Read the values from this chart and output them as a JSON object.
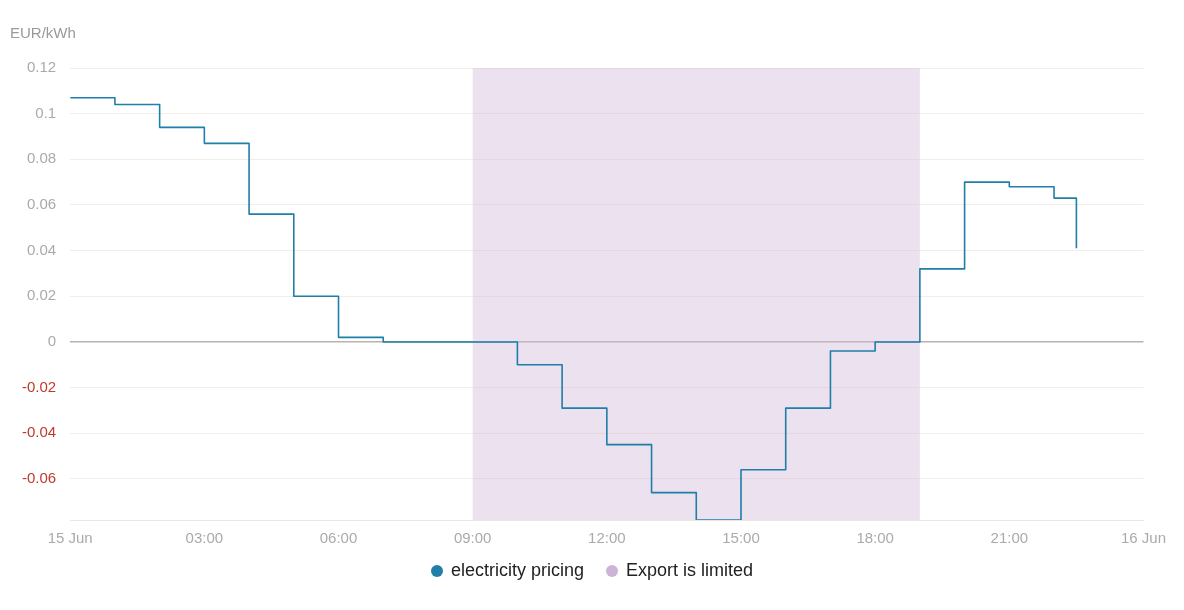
{
  "chart_data": {
    "type": "step",
    "ylabel": "EUR/kWh",
    "x": [
      0,
      1,
      2,
      3,
      4,
      5,
      6,
      7,
      8,
      9,
      10,
      11,
      12,
      13,
      14,
      15,
      16,
      17,
      18,
      19,
      20,
      21,
      22,
      22.5
    ],
    "series": [
      {
        "name": "electricity pricing",
        "color": "#1f7fa8",
        "values": [
          0.107,
          0.104,
          0.094,
          0.087,
          0.056,
          0.02,
          0.002,
          0.0,
          0.0,
          0.0,
          -0.01,
          -0.029,
          -0.045,
          -0.066,
          -0.078,
          -0.056,
          -0.029,
          -0.004,
          0.0,
          0.032,
          0.07,
          0.068,
          0.063,
          0.041
        ]
      }
    ],
    "xlim": [
      0,
      24
    ],
    "xticks": [
      {
        "value": 0,
        "label": "15 Jun"
      },
      {
        "value": 3,
        "label": "03:00"
      },
      {
        "value": 6,
        "label": "06:00"
      },
      {
        "value": 9,
        "label": "09:00"
      },
      {
        "value": 12,
        "label": "12:00"
      },
      {
        "value": 15,
        "label": "15:00"
      },
      {
        "value": 18,
        "label": "18:00"
      },
      {
        "value": 21,
        "label": "21:00"
      },
      {
        "value": 24,
        "label": "16 Jun"
      }
    ],
    "ylim": [
      -0.078,
      0.12
    ],
    "yticks": [
      0.12,
      0.1,
      0.08,
      0.06,
      0.04,
      0.02,
      0,
      -0.02,
      -0.04,
      -0.06
    ],
    "bands": [
      {
        "axis": "x",
        "from": 9,
        "to": 19,
        "label": "Export is limited",
        "color": "#cdb3d6"
      }
    ],
    "grid": "y",
    "legend": "bottom"
  }
}
